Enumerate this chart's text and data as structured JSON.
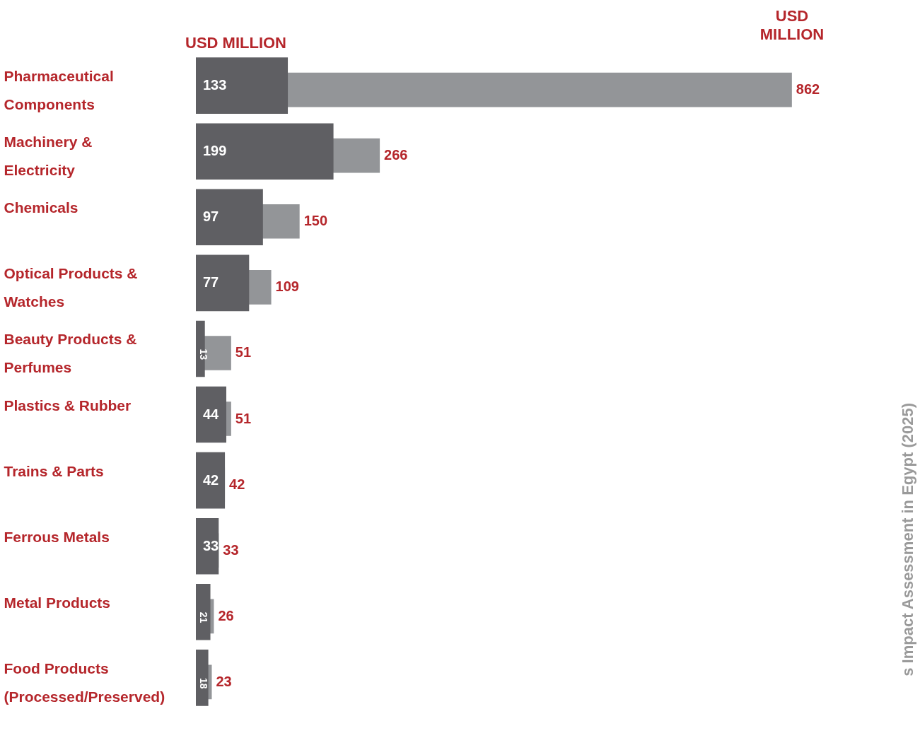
{
  "chart_data": {
    "type": "bar",
    "orientation": "horizontal",
    "data_labels": true,
    "categories": [
      "Pharmaceutical Components",
      "Machinery & Electricity",
      "Chemicals",
      "Optical Products & Watches",
      "Beauty Products & Perfumes",
      "Plastics & Rubber",
      "Trains & Parts",
      "Ferrous Metals",
      "Metal Products",
      "Food Products (Processed/Preserved)"
    ],
    "series": [
      {
        "color": "#939598",
        "values": [
          862,
          266,
          150,
          109,
          51,
          51,
          42,
          33,
          26,
          23
        ]
      },
      {
        "color": "#5f5f63",
        "values": [
          133,
          199,
          97,
          77,
          13,
          44,
          42,
          33,
          21,
          18
        ]
      }
    ],
    "annotations": [
      "USD MILLION",
      "USD MILLION",
      "s Impact Assessment in Egypt (2025)"
    ]
  }
}
